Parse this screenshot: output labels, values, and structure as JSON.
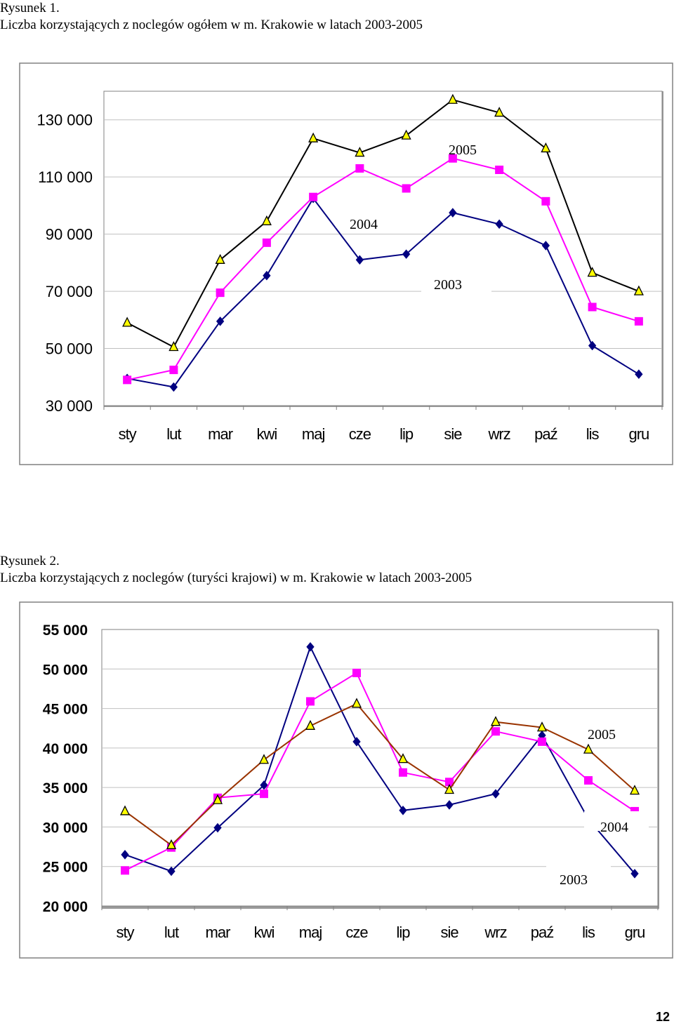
{
  "figures": [
    {
      "label": "Rysunek 1.",
      "caption": "Liczba korzystających z noclegów ogółem w m. Krakowie w latach 2003-2005"
    },
    {
      "label": "Rysunek 2.",
      "caption": "Liczba korzystających z noclegów (turyści krajowi) w m. Krakowie w latach 2003-2005"
    }
  ],
  "page_number": "12",
  "chart_data": [
    {
      "type": "line",
      "title": "",
      "xlabel": "",
      "ylabel": "",
      "categories": [
        "sty",
        "lut",
        "mar",
        "kwi",
        "maj",
        "cze",
        "lip",
        "sie",
        "wrz",
        "paź",
        "lis",
        "gru"
      ],
      "ylim": [
        30000,
        140000
      ],
      "yticks": [
        30000,
        50000,
        70000,
        90000,
        110000,
        130000
      ],
      "ytick_labels": [
        "30 000",
        "50 000",
        "70 000",
        "90 000",
        "110 000",
        "130 000"
      ],
      "grid": true,
      "tick_bold": false,
      "series": [
        {
          "name": "2003",
          "color": "#000080",
          "marker": "diamond",
          "values": [
            39500,
            36500,
            59500,
            75500,
            102500,
            81000,
            83000,
            97500,
            93500,
            86000,
            51000,
            41000
          ]
        },
        {
          "name": "2004",
          "color": "#FF00FF",
          "marker": "square",
          "values": [
            39000,
            42500,
            69500,
            87000,
            103000,
            113000,
            106000,
            116500,
            112500,
            101500,
            64500,
            59500
          ]
        },
        {
          "name": "2005",
          "color": "#000000",
          "marker": "triangle",
          "values": [
            59000,
            50500,
            81000,
            94500,
            123500,
            118500,
            124500,
            137000,
            132500,
            120000,
            76500,
            70000
          ]
        }
      ]
    },
    {
      "type": "line",
      "title": "",
      "xlabel": "",
      "ylabel": "",
      "categories": [
        "sty",
        "lut",
        "mar",
        "kwi",
        "maj",
        "cze",
        "lip",
        "sie",
        "wrz",
        "paź",
        "lis",
        "gru"
      ],
      "ylim": [
        20000,
        55000
      ],
      "yticks": [
        20000,
        25000,
        30000,
        35000,
        40000,
        45000,
        50000,
        55000
      ],
      "ytick_labels": [
        "20 000",
        "25 000",
        "30 000",
        "35 000",
        "40 000",
        "45 000",
        "50 000",
        "55 000"
      ],
      "grid": true,
      "tick_bold": true,
      "series": [
        {
          "name": "2003",
          "color": "#000080",
          "marker": "diamond",
          "values": [
            26500,
            24400,
            29900,
            35300,
            52800,
            40800,
            32100,
            32800,
            34200,
            41600,
            31000,
            24100
          ]
        },
        {
          "name": "2004",
          "color": "#FF00FF",
          "marker": "square",
          "values": [
            24500,
            27400,
            33700,
            34200,
            45900,
            49500,
            36900,
            35700,
            42100,
            40800,
            35900,
            32000
          ]
        },
        {
          "name": "2005",
          "color": "#993300",
          "marker": "triangle",
          "values": [
            32000,
            27700,
            33400,
            38500,
            42800,
            45600,
            38600,
            34700,
            43300,
            42600,
            39800,
            34600
          ]
        }
      ]
    }
  ]
}
